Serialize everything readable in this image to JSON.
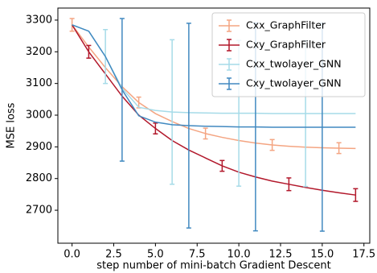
{
  "chart_data": {
    "type": "line",
    "xlabel": "step number of mini-batch Gradient Descent",
    "ylabel": "MSE loss",
    "x": [
      0,
      1,
      2,
      3,
      4,
      5,
      6,
      7,
      8,
      9,
      10,
      11,
      12,
      13,
      14,
      15,
      16,
      17
    ],
    "series": [
      {
        "name": "Cxx_GraphFilter",
        "color": "#f4a582",
        "values": [
          3285,
          3215,
          3150,
          3090,
          3040,
          3005,
          2980,
          2958,
          2942,
          2930,
          2920,
          2912,
          2906,
          2902,
          2899,
          2897,
          2896,
          2895
        ],
        "errors": [
          20,
          null,
          null,
          null,
          17,
          null,
          null,
          null,
          17,
          null,
          null,
          null,
          17,
          null,
          null,
          null,
          17,
          null
        ]
      },
      {
        "name": "Cxy_GraphFilter",
        "color": "#b2182b",
        "values": [
          3285,
          3200,
          3130,
          3060,
          3000,
          2958,
          2920,
          2890,
          2865,
          2840,
          2820,
          2805,
          2792,
          2782,
          2772,
          2763,
          2755,
          2748
        ],
        "errors": [
          null,
          20,
          null,
          null,
          null,
          17,
          null,
          null,
          null,
          17,
          null,
          null,
          null,
          20,
          null,
          null,
          null,
          20
        ]
      },
      {
        "name": "Cxx_twolayer_GNN",
        "color": "#a6dbe8",
        "values": [
          3285,
          3265,
          3185,
          3085,
          3025,
          3015,
          3010,
          3008,
          3007,
          3006,
          3006,
          3006,
          3005,
          3005,
          3005,
          3005,
          3005,
          3005
        ],
        "errors": [
          null,
          null,
          85,
          null,
          null,
          null,
          228,
          null,
          null,
          null,
          230,
          null,
          null,
          null,
          230,
          null,
          null,
          null
        ]
      },
      {
        "name": "Cxy_twolayer_GNN",
        "color": "#4189c0",
        "values": [
          3285,
          3265,
          3185,
          3080,
          2998,
          2978,
          2970,
          2967,
          2965,
          2964,
          2963,
          2963,
          2962,
          2962,
          2962,
          2962,
          2962,
          2962
        ],
        "errors": [
          null,
          null,
          null,
          225,
          null,
          null,
          null,
          323,
          null,
          null,
          null,
          328,
          null,
          null,
          null,
          328,
          null,
          null
        ]
      }
    ],
    "xlim": [
      -0.85,
      17.85
    ],
    "xticks": [
      {
        "value": 0,
        "label": "0.0"
      },
      {
        "value": 2.5,
        "label": "2.5"
      },
      {
        "value": 5,
        "label": "5.0"
      },
      {
        "value": 7.5,
        "label": "7.5"
      },
      {
        "value": 10,
        "label": "10.0"
      },
      {
        "value": 12.5,
        "label": "12.5"
      },
      {
        "value": 15,
        "label": "15.0"
      },
      {
        "value": 17.5,
        "label": "17.5"
      }
    ],
    "ylim": [
      2596,
      3338
    ],
    "yticks": [
      2700,
      2800,
      2900,
      3000,
      3100,
      3200,
      3300
    ],
    "legend": "upper right"
  }
}
